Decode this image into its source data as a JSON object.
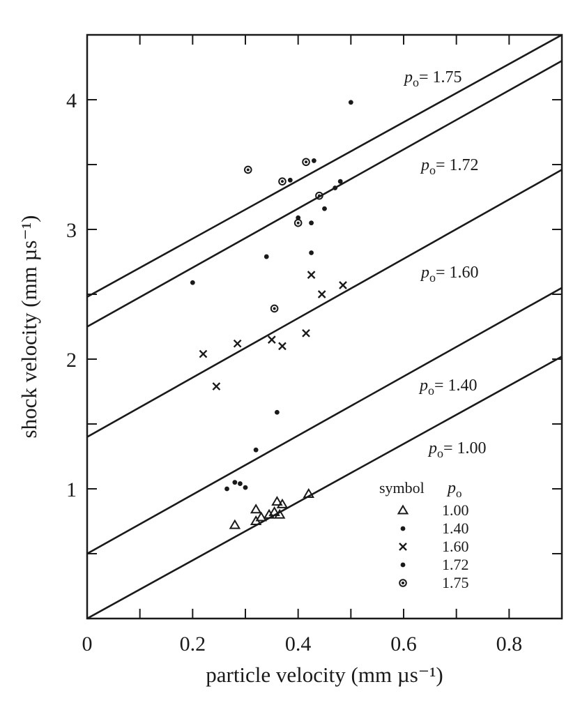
{
  "chart_data": {
    "type": "scatter",
    "xlabel": "particle velocity (mm µs⁻¹)",
    "ylabel": "shock velocity (mm µs⁻¹)",
    "xlim": [
      0,
      0.9
    ],
    "ylim": [
      0,
      4.5
    ],
    "x_ticks": [
      0,
      0.2,
      0.4,
      0.6,
      0.8
    ],
    "x_tick_labels": [
      "0",
      "0.2",
      "0.4",
      "0.6",
      "0.8"
    ],
    "y_ticks": [
      1,
      2,
      3,
      4
    ],
    "y_tick_labels": [
      "1",
      "2",
      "3",
      "4"
    ],
    "grid": false,
    "legend": {
      "placement": "bottom-right",
      "header_symbol": "symbol",
      "header_param": "p",
      "header_sub": "o",
      "entries": [
        {
          "marker": "triangle",
          "label": "1.00"
        },
        {
          "marker": "small-dot",
          "label": "1.40"
        },
        {
          "marker": "cross",
          "label": "1.60"
        },
        {
          "marker": "small-dot",
          "label": "1.72"
        },
        {
          "marker": "ring-dot",
          "label": "1.75"
        }
      ]
    },
    "lines": [
      {
        "label_p": "p",
        "label_sub": "o",
        "label_value": "= 1.75",
        "x": [
          0,
          0.9
        ],
        "y": [
          2.48,
          4.5
        ]
      },
      {
        "label_p": "p",
        "label_sub": "o",
        "label_value": "= 1.72",
        "x": [
          0,
          0.9
        ],
        "y": [
          2.25,
          4.3
        ]
      },
      {
        "label_p": "p",
        "label_sub": "o",
        "label_value": "= 1.60",
        "x": [
          0,
          0.9
        ],
        "y": [
          1.4,
          3.46
        ]
      },
      {
        "label_p": "p",
        "label_sub": "o",
        "label_value": "= 1.40",
        "x": [
          0,
          0.9
        ],
        "y": [
          0.5,
          2.55
        ]
      },
      {
        "label_p": "p",
        "label_sub": "o",
        "label_value": "= 1.00",
        "x": [
          0,
          0.9
        ],
        "y": [
          0.0,
          2.02
        ]
      }
    ],
    "series": [
      {
        "marker": "triangle",
        "points": [
          [
            0.28,
            0.72
          ],
          [
            0.32,
            0.84
          ],
          [
            0.32,
            0.75
          ],
          [
            0.33,
            0.78
          ],
          [
            0.345,
            0.8
          ],
          [
            0.355,
            0.82
          ],
          [
            0.36,
            0.9
          ],
          [
            0.365,
            0.8
          ],
          [
            0.37,
            0.88
          ],
          [
            0.42,
            0.96
          ]
        ]
      },
      {
        "marker": "small-dot",
        "points": [
          [
            0.265,
            1.0
          ],
          [
            0.28,
            1.05
          ],
          [
            0.29,
            1.04
          ],
          [
            0.3,
            1.01
          ],
          [
            0.32,
            1.3
          ],
          [
            0.36,
            1.59
          ]
        ]
      },
      {
        "marker": "cross",
        "points": [
          [
            0.22,
            2.04
          ],
          [
            0.245,
            1.79
          ],
          [
            0.285,
            2.12
          ],
          [
            0.35,
            2.15
          ],
          [
            0.37,
            2.1
          ],
          [
            0.415,
            2.2
          ],
          [
            0.425,
            2.65
          ],
          [
            0.445,
            2.5
          ],
          [
            0.485,
            2.57
          ]
        ]
      },
      {
        "marker": "small-dot",
        "points": [
          [
            0.2,
            2.59
          ],
          [
            0.34,
            2.79
          ],
          [
            0.385,
            3.38
          ],
          [
            0.4,
            3.09
          ],
          [
            0.425,
            2.82
          ],
          [
            0.425,
            3.05
          ],
          [
            0.43,
            3.53
          ],
          [
            0.45,
            3.16
          ],
          [
            0.47,
            3.32
          ],
          [
            0.48,
            3.37
          ],
          [
            0.5,
            3.98
          ]
        ]
      },
      {
        "marker": "ring-dot",
        "points": [
          [
            0.305,
            3.46
          ],
          [
            0.37,
            3.37
          ],
          [
            0.355,
            2.39
          ],
          [
            0.4,
            3.05
          ],
          [
            0.415,
            3.52
          ],
          [
            0.44,
            3.26
          ]
        ]
      }
    ]
  }
}
